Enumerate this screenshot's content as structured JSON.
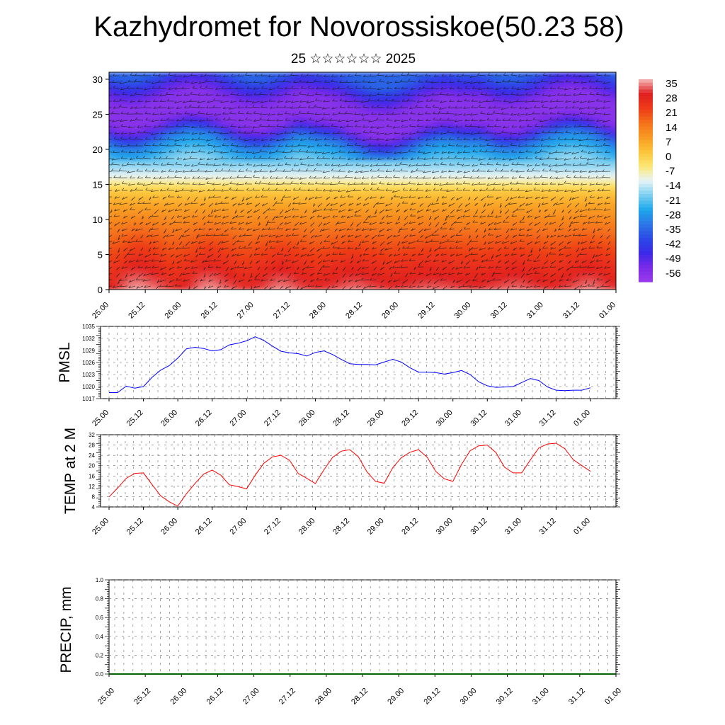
{
  "title": "Kazhydromet for Novorossiskoe(50.23 58)",
  "subtitle": "25 ☆☆☆☆☆☆ 2025",
  "time_labels": [
    "25.00",
    "25.12",
    "26.00",
    "26.12",
    "27.00",
    "27.12",
    "28.00",
    "28.12",
    "29.00",
    "29.12",
    "30.00",
    "30.12",
    "31.00",
    "31.12",
    "01.00"
  ],
  "chart_data": [
    {
      "type": "heatmap",
      "title": "",
      "x_ticks": [
        "25.00",
        "25.12",
        "26.00",
        "26.12",
        "27.00",
        "27.12",
        "28.00",
        "28.12",
        "29.00",
        "29.12",
        "30.00",
        "30.12",
        "31.00",
        "31.12",
        "01.00"
      ],
      "y_ticks": [
        "0",
        "5",
        "10",
        "15",
        "20",
        "25",
        "30"
      ],
      "ylim": [
        0,
        31
      ],
      "colorbar": {
        "labels": [
          "35",
          "28",
          "21",
          "14",
          "7",
          "0",
          "-7",
          "-14",
          "-21",
          "-28",
          "-35",
          "-42",
          "-49",
          "-56"
        ],
        "colors": [
          "#f4b8b8",
          "#e02020",
          "#ee3a18",
          "#f4701a",
          "#f89a22",
          "#fcc338",
          "#fde772",
          "#e8f4f8",
          "#7ed0f0",
          "#1ea8ec",
          "#2c78e6",
          "#2c4ae6",
          "#3a2ae8",
          "#7a2ae8",
          "#9a3aec"
        ]
      },
      "temperature_profile": [
        [
          0,
          33
        ],
        [
          3,
          28
        ],
        [
          6,
          22
        ],
        [
          9,
          15
        ],
        [
          12,
          8
        ],
        [
          14,
          1
        ],
        [
          15.5,
          -8
        ],
        [
          17,
          -15
        ],
        [
          19,
          -22
        ],
        [
          21,
          -30
        ],
        [
          22.5,
          -45
        ],
        [
          24,
          -56
        ],
        [
          27,
          -56
        ],
        [
          30,
          -42
        ],
        [
          31,
          -35
        ]
      ],
      "vector_field": "wind barbs overlaid on the full field"
    },
    {
      "type": "line",
      "ylabel": "PMSL",
      "ylim": [
        1017,
        1035
      ],
      "y_ticks": [
        "1035",
        "1032",
        "1029",
        "1026",
        "1023",
        "1020",
        "1017"
      ],
      "series": [
        {
          "color": "#0000ff",
          "x": [
            0,
            0.25,
            0.5,
            0.75,
            1,
            1.25,
            1.5,
            1.75,
            2,
            2.25,
            2.5,
            2.75,
            3,
            3.25,
            3.5,
            3.75,
            4,
            4.25,
            4.5,
            4.75,
            5,
            5.25,
            5.5,
            5.75,
            6,
            6.25,
            6.5,
            6.75,
            7,
            7.25,
            7.5,
            7.75,
            8,
            8.25,
            8.5,
            8.75,
            9,
            9.25,
            9.5,
            9.75,
            10,
            10.25,
            10.5,
            10.75,
            11,
            11.25,
            11.5,
            11.75,
            12,
            12.25,
            12.5,
            12.75,
            13,
            13.25,
            13.5,
            13.75,
            14
          ],
          "values": [
            1018.5,
            1018.5,
            1020.1,
            1019.6,
            1020.0,
            1022.3,
            1024.1,
            1025.2,
            1027.1,
            1029.4,
            1029.8,
            1029.5,
            1028.9,
            1029.2,
            1030.4,
            1030.8,
            1031.4,
            1032.4,
            1031.5,
            1030.1,
            1028.8,
            1028.4,
            1028.2,
            1027.6,
            1028.5,
            1028.9,
            1028.0,
            1026.8,
            1025.7,
            1025.5,
            1025.5,
            1025.4,
            1026.1,
            1026.8,
            1026.1,
            1024.7,
            1023.6,
            1023.6,
            1023.5,
            1023.1,
            1023.5,
            1024.0,
            1023.0,
            1021.2,
            1020.2,
            1019.8,
            1019.9,
            1020.0,
            1021.0,
            1022.0,
            1021.5,
            1019.9,
            1019.1,
            1019.0,
            1019.1,
            1019.1,
            1019.7
          ]
        }
      ]
    },
    {
      "type": "line",
      "ylabel": "TEMP at 2 M",
      "ylim": [
        4,
        32
      ],
      "y_ticks": [
        "32",
        "28",
        "24",
        "20",
        "16",
        "12",
        "8",
        "4"
      ],
      "series": [
        {
          "color": "#ff0000",
          "x": [
            0,
            0.25,
            0.5,
            0.75,
            1,
            1.25,
            1.5,
            1.75,
            2,
            2.25,
            2.5,
            2.75,
            3,
            3.25,
            3.5,
            3.75,
            4,
            4.25,
            4.5,
            4.75,
            5,
            5.25,
            5.5,
            5.75,
            6,
            6.25,
            6.5,
            6.75,
            7,
            7.25,
            7.5,
            7.75,
            8,
            8.25,
            8.5,
            8.75,
            9,
            9.25,
            9.5,
            9.75,
            10,
            10.25,
            10.5,
            10.75,
            11,
            11.25,
            11.5,
            11.75,
            12,
            12.25,
            12.5,
            12.75,
            13,
            13.25,
            13.5,
            13.75,
            14
          ],
          "values": [
            7.9,
            11.3,
            15.1,
            17.0,
            17.2,
            12.7,
            8.3,
            6.0,
            4.3,
            9.1,
            13.1,
            16.7,
            18.3,
            16.3,
            12.6,
            11.9,
            11.0,
            16.3,
            20.9,
            23.4,
            24.0,
            22.1,
            17.0,
            15.1,
            13.1,
            18.4,
            23.2,
            25.6,
            26.2,
            23.5,
            17.6,
            13.9,
            13.2,
            19.2,
            23.1,
            25.2,
            26.2,
            23.3,
            17.8,
            14.9,
            13.9,
            20.5,
            25.8,
            27.7,
            28.0,
            25.1,
            19.4,
            17.2,
            17.2,
            22.2,
            26.9,
            28.4,
            28.7,
            26.6,
            22.3,
            20.0,
            17.8
          ]
        }
      ]
    },
    {
      "type": "line",
      "ylabel": "PRECIP, mm",
      "ylim": [
        0,
        1
      ],
      "y_ticks": [
        "1.0",
        "0.8",
        "0.6",
        "0.4",
        "0.2",
        "0.0"
      ],
      "series": [
        {
          "color": "#006400",
          "x": [
            0,
            14
          ],
          "values": [
            0,
            0
          ]
        }
      ]
    }
  ]
}
